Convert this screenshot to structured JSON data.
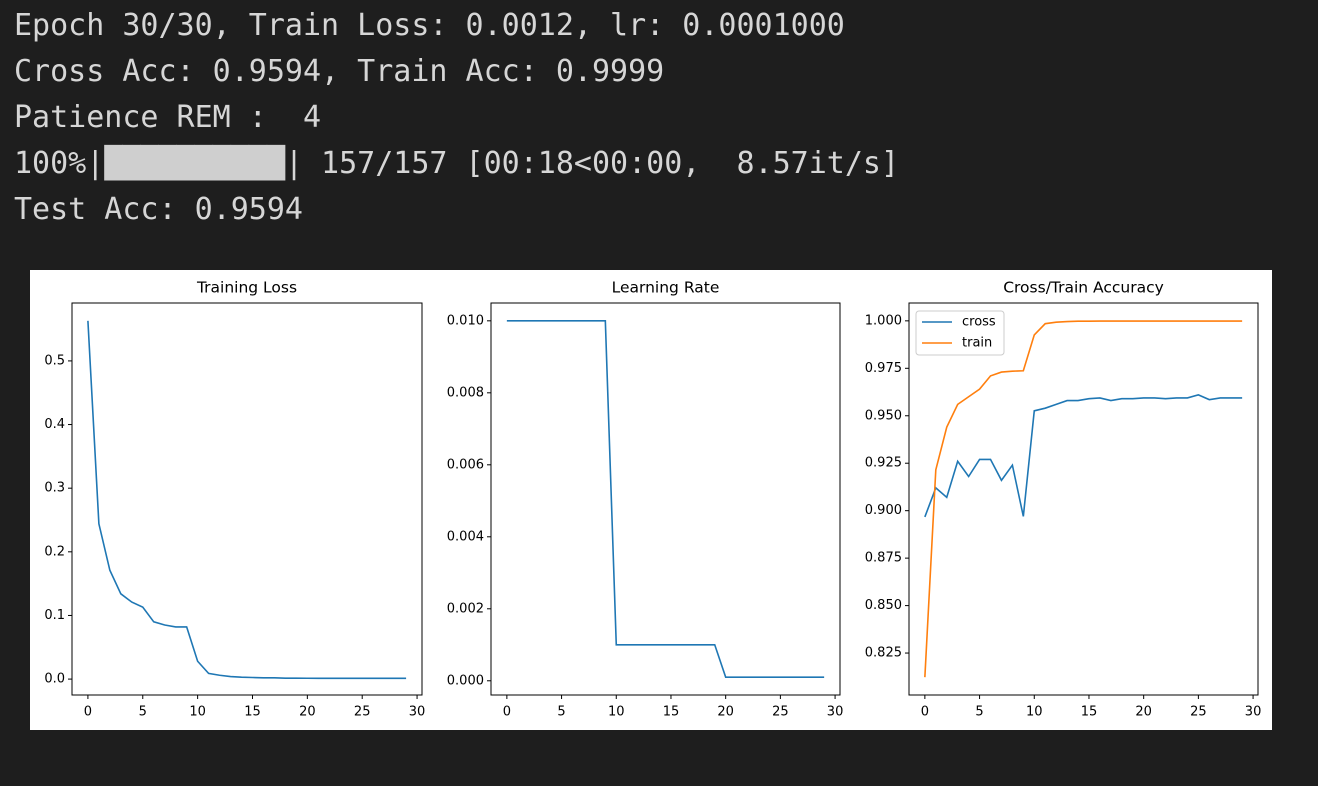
{
  "console": {
    "lines": [
      "Epoch 30/30, Train Loss: 0.0012, lr: 0.0001000",
      "Cross Acc: 0.9594, Train Acc: 0.9999",
      "Patience REM :  4",
      "Test Acc: 0.9594"
    ],
    "progress": {
      "percent": "100%|",
      "bar": "██████████",
      "rest": "| 157/157 [00:18<00:00,  8.57it/s]"
    }
  },
  "chart_data": [
    {
      "type": "line",
      "title": "Training Loss",
      "color": "#1f77b4",
      "x": [
        0,
        1,
        2,
        3,
        4,
        5,
        6,
        7,
        8,
        9,
        10,
        11,
        12,
        13,
        14,
        15,
        16,
        17,
        18,
        19,
        20,
        21,
        22,
        23,
        24,
        25,
        26,
        27,
        28,
        29
      ],
      "values": [
        0.563,
        0.244,
        0.171,
        0.134,
        0.121,
        0.113,
        0.09,
        0.085,
        0.082,
        0.082,
        0.028,
        0.009,
        0.006,
        0.004,
        0.003,
        0.0025,
        0.002,
        0.002,
        0.0015,
        0.0015,
        0.0013,
        0.0012,
        0.0012,
        0.0012,
        0.0012,
        0.0012,
        0.0012,
        0.0012,
        0.0012,
        0.0012
      ],
      "xlim": [
        -1.45,
        30.45
      ],
      "ylim": [
        -0.025,
        0.591
      ],
      "xticks": [
        0,
        5,
        10,
        15,
        20,
        25,
        30
      ],
      "yticks": [
        {
          "value": 0,
          "label": "0.0"
        },
        0.1,
        0.2,
        0.3,
        0.4,
        0.5
      ]
    },
    {
      "type": "line",
      "title": "Learning Rate",
      "color": "#1f77b4",
      "x": [
        0,
        1,
        2,
        3,
        4,
        5,
        6,
        7,
        8,
        9,
        10,
        11,
        12,
        13,
        14,
        15,
        16,
        17,
        18,
        19,
        20,
        21,
        22,
        23,
        24,
        25,
        26,
        27,
        28,
        29
      ],
      "values": [
        0.01,
        0.01,
        0.01,
        0.01,
        0.01,
        0.01,
        0.01,
        0.01,
        0.01,
        0.01,
        0.001,
        0.001,
        0.001,
        0.001,
        0.001,
        0.001,
        0.001,
        0.001,
        0.001,
        0.001,
        0.0001,
        0.0001,
        0.0001,
        0.0001,
        0.0001,
        0.0001,
        0.0001,
        0.0001,
        0.0001,
        0.0001
      ],
      "xlim": [
        -1.45,
        30.45
      ],
      "ylim": [
        -0.000395,
        0.010495
      ],
      "xticks": [
        0,
        5,
        10,
        15,
        20,
        25,
        30
      ],
      "yticks": [
        {
          "value": 0,
          "label": "0.000"
        },
        0.002,
        0.004,
        0.006,
        0.008,
        {
          "value": 0.01,
          "label": "0.010"
        }
      ]
    },
    {
      "type": "line",
      "title": "Cross/Train Accuracy",
      "legend": "upper left",
      "x": [
        0,
        1,
        2,
        3,
        4,
        5,
        6,
        7,
        8,
        9,
        10,
        11,
        12,
        13,
        14,
        15,
        16,
        17,
        18,
        19,
        20,
        21,
        22,
        23,
        24,
        25,
        26,
        27,
        28,
        29
      ],
      "series": [
        {
          "name": "cross",
          "color": "#1f77b4",
          "values": [
            0.8967,
            0.912,
            0.907,
            0.926,
            0.918,
            0.927,
            0.927,
            0.916,
            0.924,
            0.897,
            0.9526,
            0.954,
            0.956,
            0.958,
            0.958,
            0.959,
            0.9594,
            0.958,
            0.959,
            0.959,
            0.9594,
            0.9594,
            0.959,
            0.9594,
            0.9594,
            0.961,
            0.9585,
            0.9594,
            0.9594,
            0.9594
          ]
        },
        {
          "name": "train",
          "color": "#ff7f0e",
          "values": [
            0.8123,
            0.9215,
            0.944,
            0.956,
            0.96,
            0.964,
            0.971,
            0.973,
            0.9735,
            0.9737,
            0.9926,
            0.9985,
            0.9993,
            0.9996,
            0.9998,
            0.9998,
            0.9999,
            0.9999,
            0.9999,
            0.9999,
            0.9999,
            0.9999,
            0.9999,
            0.9999,
            0.9999,
            0.9999,
            0.9999,
            0.9999,
            0.9999,
            0.9999
          ]
        }
      ],
      "xlim": [
        -1.45,
        30.45
      ],
      "ylim": [
        0.8029,
        1.0094
      ],
      "xticks": [
        0,
        5,
        10,
        15,
        20,
        25,
        30
      ],
      "yticks": [
        0.825,
        {
          "value": 0.85,
          "label": "0.850"
        },
        0.875,
        {
          "value": 0.9,
          "label": "0.900"
        },
        0.925,
        {
          "value": 0.95,
          "label": "0.950"
        },
        0.975,
        {
          "value": 1,
          "label": "1.000"
        }
      ]
    }
  ]
}
